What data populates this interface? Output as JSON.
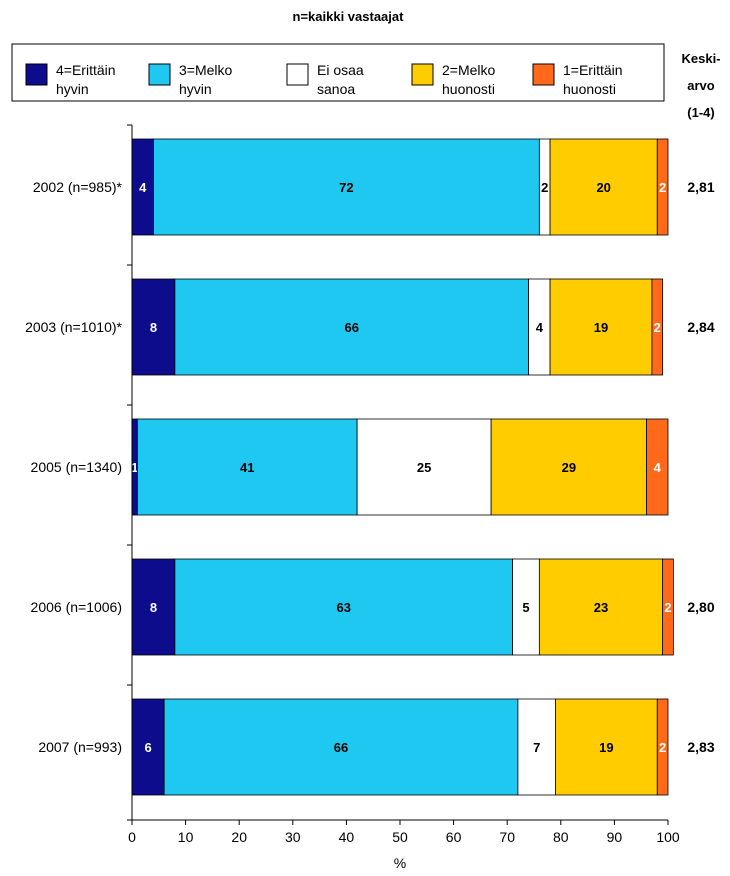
{
  "subtitle": "n=kaikki vastaajat",
  "mean_header": [
    "Keski-",
    "arvo",
    "(1-4)"
  ],
  "chart_data": {
    "type": "bar",
    "orientation": "horizontal",
    "stacked": true,
    "xlabel": "%",
    "xlim": [
      0,
      100
    ],
    "xticks": [
      0,
      10,
      20,
      30,
      40,
      50,
      60,
      70,
      80,
      90,
      100
    ],
    "grid": false,
    "legend_position": "top",
    "categories": [
      "2002 (n=985)*",
      "2003 (n=1010)*",
      "2005 (n=1340)",
      "2006 (n=1006)",
      "2007 (n=993)"
    ],
    "series": [
      {
        "name": "4=Erittäin hyvin",
        "legend_lines": [
          "4=Erittäin",
          "hyvin"
        ],
        "color": "#0c0c8c",
        "label_color": "#ffffff",
        "values": [
          4,
          8,
          1,
          8,
          6
        ],
        "labels": [
          "4",
          "8",
          "1",
          "8",
          "6"
        ]
      },
      {
        "name": "3=Melko hyvin",
        "legend_lines": [
          "3=Melko",
          "hyvin"
        ],
        "color": "#1ec8f0",
        "label_color": "#000000",
        "values": [
          72,
          66,
          41,
          63,
          66
        ],
        "labels": [
          "72",
          "66",
          "41",
          "63",
          "66"
        ]
      },
      {
        "name": "Ei osaa sanoa",
        "legend_lines": [
          "Ei osaa",
          "sanoa"
        ],
        "color": "#ffffff",
        "label_color": "#000000",
        "values": [
          2,
          4,
          25,
          5,
          7
        ],
        "labels": [
          "2",
          "4",
          "25",
          "5",
          "7"
        ]
      },
      {
        "name": "2=Melko huonosti",
        "legend_lines": [
          "2=Melko",
          "huonosti"
        ],
        "color": "#ffcc00",
        "label_color": "#000000",
        "values": [
          20,
          19,
          29,
          23,
          19
        ],
        "labels": [
          "20",
          "19",
          "29",
          "23",
          "19"
        ]
      },
      {
        "name": "1=Erittäin huonosti",
        "legend_lines": [
          "1=Erittäin",
          "huonosti"
        ],
        "color": "#ff6a1a",
        "label_color": "#ffffff",
        "values": [
          2,
          2,
          4,
          2,
          2
        ],
        "labels": [
          "2",
          "2",
          "4",
          "2",
          "2"
        ]
      }
    ],
    "means": [
      "2,81",
      "2,84",
      "",
      "2,80",
      "2,83"
    ]
  }
}
